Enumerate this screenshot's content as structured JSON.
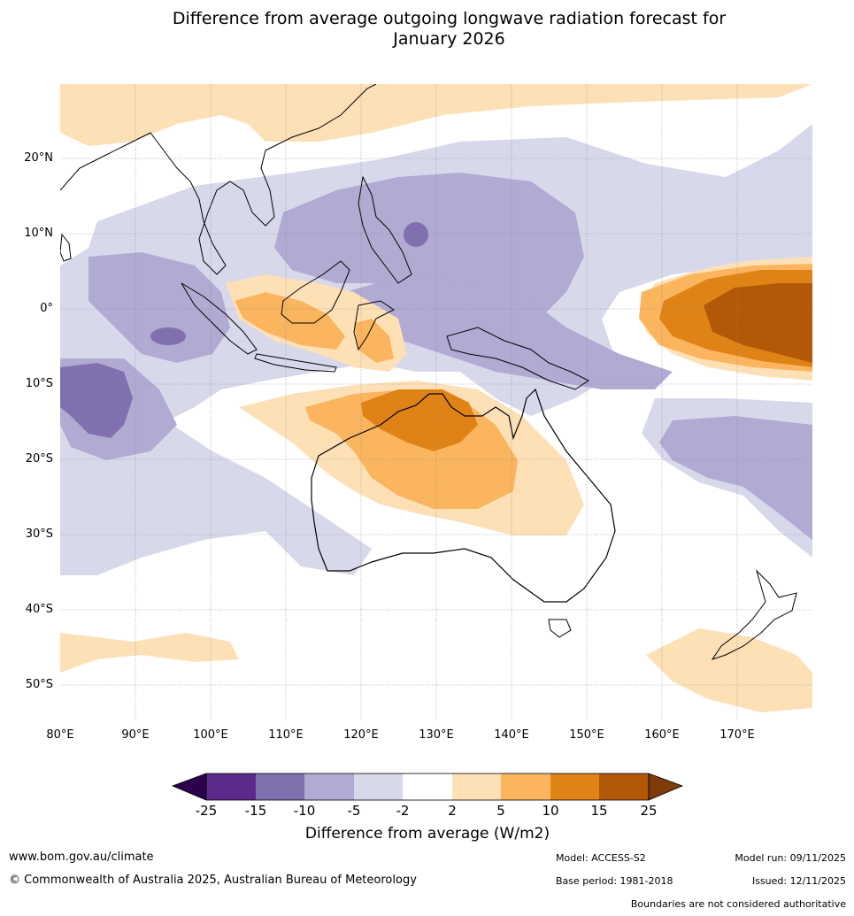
{
  "title_line1": "Difference from average outgoing longwave radiation forecast for",
  "title_line2": "January 2026",
  "lat_labels": [
    "20°N",
    "10°N",
    "0°",
    "10°S",
    "20°S",
    "30°S",
    "40°S",
    "50°S"
  ],
  "lon_labels": [
    "80°E",
    "90°E",
    "100°E",
    "110°E",
    "120°E",
    "130°E",
    "140°E",
    "150°E",
    "160°E",
    "170°E"
  ],
  "colorbar": {
    "ticks": [
      "-25",
      "-15",
      "-10",
      "-5",
      "-2",
      "2",
      "5",
      "10",
      "15",
      "25"
    ],
    "colors": [
      "#5b2a8c",
      "#8070ad",
      "#b1aad3",
      "#d8d8eb",
      "#ffffff",
      "#fee0b6",
      "#fbb55f",
      "#e08317",
      "#b35806"
    ],
    "extend_low_color": "#2d004b",
    "extend_high_color": "#7f3b08",
    "label": "Difference from average (W/m2)"
  },
  "footer": {
    "website": "www.bom.gov.au/climate",
    "copyright": "© Commonwealth of Australia 2025, Australian Bureau of Meteorology",
    "model": "Model: ACCESS-S2",
    "base_period": "Base period: 1981-2018",
    "model_run": "Model run: 09/11/2025",
    "issued": "Issued: 12/11/2025",
    "disclaimer": "Boundaries are not considered authoritative"
  }
}
